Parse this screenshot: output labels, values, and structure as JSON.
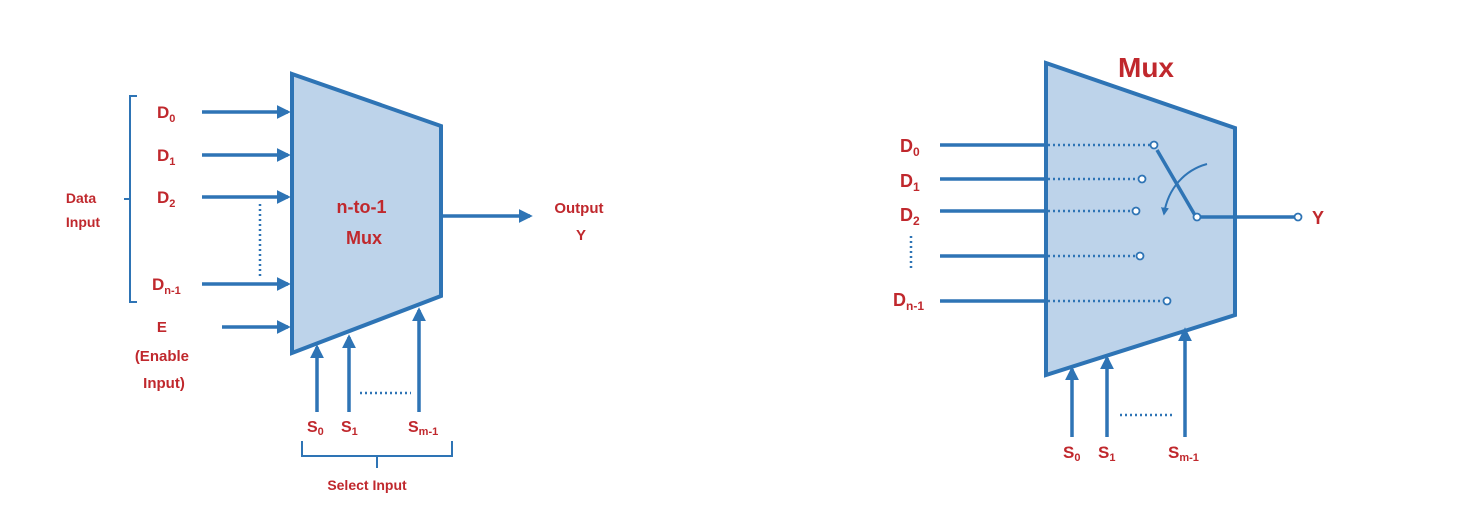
{
  "left_diagram": {
    "data_inputs": [
      {
        "base": "D",
        "sub": "0"
      },
      {
        "base": "D",
        "sub": "1"
      },
      {
        "base": "D",
        "sub": "2"
      },
      {
        "base": "D",
        "sub": "n-1"
      }
    ],
    "data_input_label": [
      "Data",
      "Input"
    ],
    "enable_label": [
      "E",
      "(Enable",
      "Input)"
    ],
    "mux_label": [
      "n-to-1",
      "Mux"
    ],
    "output_label": [
      "Output",
      "Y"
    ],
    "select_inputs": [
      {
        "base": "S",
        "sub": "0"
      },
      {
        "base": "S",
        "sub": "1"
      },
      {
        "base": "S",
        "sub": "m-1"
      }
    ],
    "select_input_label": "Select Input"
  },
  "right_diagram": {
    "title": "Mux",
    "data_inputs": [
      {
        "base": "D",
        "sub": "0"
      },
      {
        "base": "D",
        "sub": "1"
      },
      {
        "base": "D",
        "sub": "2"
      },
      {
        "base": "D",
        "sub": "n-1"
      }
    ],
    "output_label": "Y",
    "select_inputs": [
      {
        "base": "S",
        "sub": "0"
      },
      {
        "base": "S",
        "sub": "1"
      },
      {
        "base": "S",
        "sub": "m-1"
      }
    ]
  },
  "colors": {
    "wire": "#2e74b5",
    "body_fill": "#bdd3ea",
    "label": "#c0282d"
  }
}
